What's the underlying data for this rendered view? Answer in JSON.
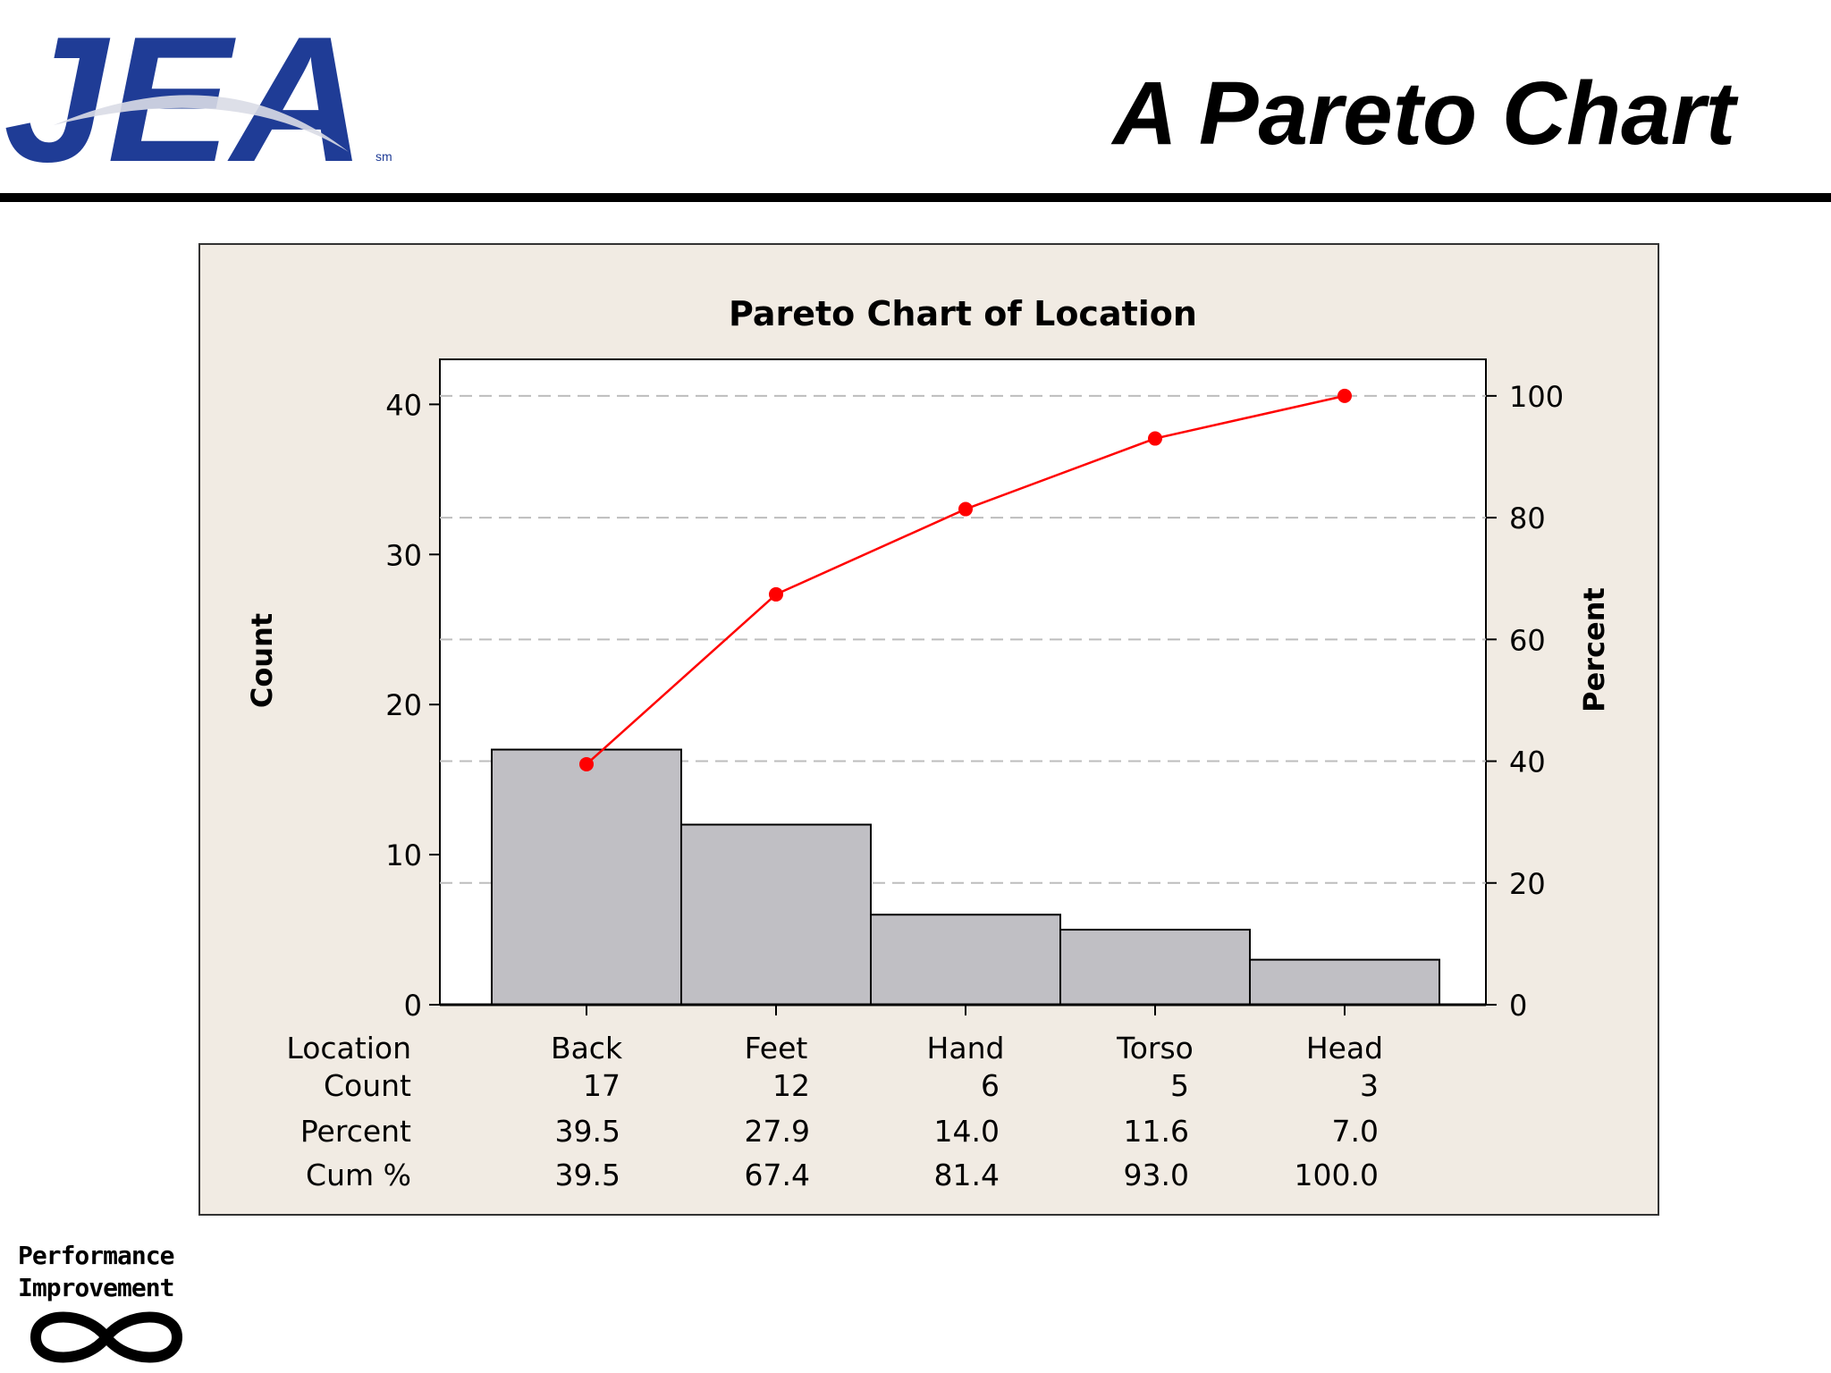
{
  "slide": {
    "title": "A Pareto Chart",
    "logo_text": "JEA",
    "logo_sm": "sm",
    "footer_logo": [
      "Performance",
      "Improvement"
    ]
  },
  "chart_data": {
    "type": "bar",
    "title": "Pareto Chart of Location",
    "xlabel": "",
    "ylabel": "Count",
    "y2label": "Percent",
    "categories": [
      "Back",
      "Feet",
      "Hand",
      "Torso",
      "Head"
    ],
    "series": [
      {
        "name": "Count",
        "type": "bar",
        "values": [
          17,
          12,
          6,
          5,
          3
        ]
      },
      {
        "name": "Cum %",
        "type": "line",
        "axis": "right",
        "values": [
          39.5,
          67.4,
          81.4,
          93.0,
          100.0
        ]
      }
    ],
    "ylim": [
      0,
      43
    ],
    "y2lim": [
      0,
      106
    ],
    "yticks": [
      0,
      10,
      20,
      30,
      40
    ],
    "y2ticks": [
      0,
      20,
      40,
      60,
      80,
      100
    ],
    "grid": "dashed horizontal at right-axis ticks",
    "bar_color": "#c0bfc4",
    "line_color": "#ff0000",
    "table": {
      "row_labels": [
        "Location",
        "Count",
        "Percent",
        "Cum %"
      ],
      "rows": [
        [
          "Back",
          "Feet",
          "Hand",
          "Torso",
          "Head"
        ],
        [
          "17",
          "12",
          "6",
          "5",
          "3"
        ],
        [
          "39.5",
          "27.9",
          "14.0",
          "11.6",
          "7.0"
        ],
        [
          "39.5",
          "67.4",
          "81.4",
          "93.0",
          "100.0"
        ]
      ]
    }
  }
}
